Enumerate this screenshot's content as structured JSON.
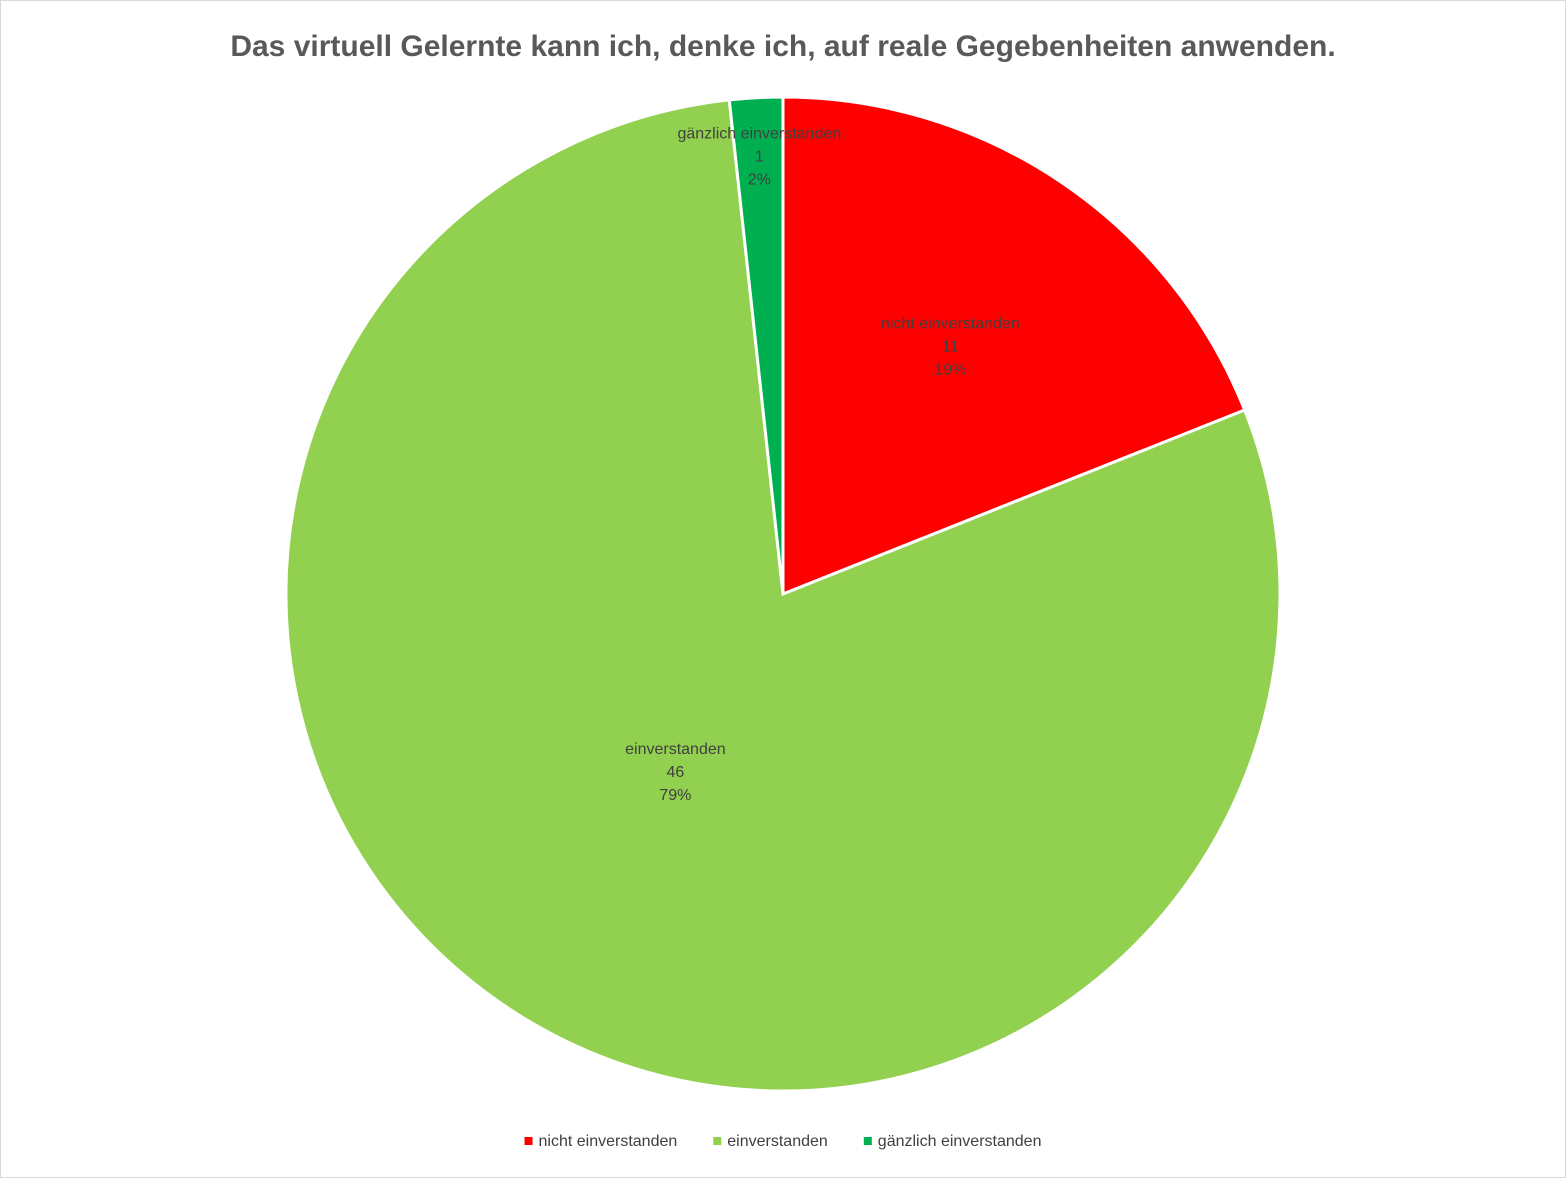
{
  "chart_data": {
    "type": "pie",
    "title": "Das virtuell Gelernte kann ich, denke ich, auf reale Gegebenheiten anwenden.",
    "categories": [
      "nicht einverstanden",
      "einverstanden",
      "gänzlich einverstanden"
    ],
    "values": [
      11,
      46,
      1
    ],
    "percent_labels": [
      "19%",
      "79%",
      "2%"
    ],
    "colors": [
      "#ff0000",
      "#92d050",
      "#00b050"
    ],
    "legend": "bottom"
  }
}
